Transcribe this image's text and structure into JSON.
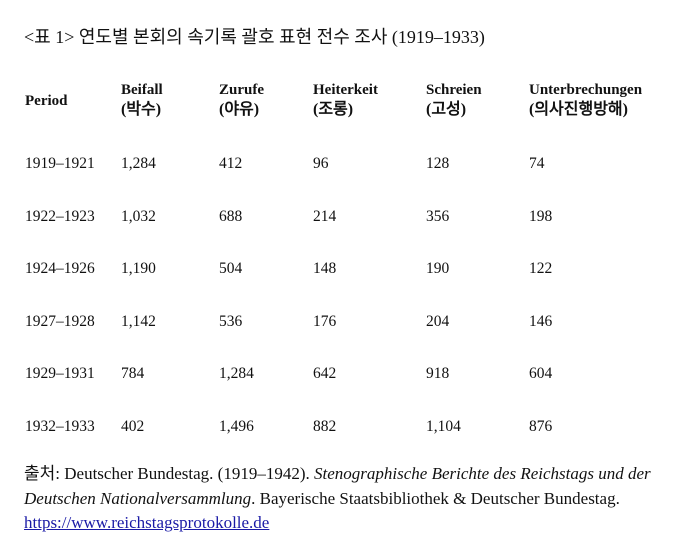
{
  "title": "<표 1> 연도별 본회의 속기록 괄호 표현 전수 조사 (1919–1933)",
  "table": {
    "columns": [
      {
        "label": "Period",
        "sub": ""
      },
      {
        "label": "Beifall",
        "sub": "(박수)"
      },
      {
        "label": "Zurufe",
        "sub": "(야유)"
      },
      {
        "label": "Heiterkeit",
        "sub": "(조롱)"
      },
      {
        "label": "Schreien",
        "sub": "(고성)"
      },
      {
        "label": "Unterbrechungen",
        "sub": "(의사진행방해)"
      }
    ],
    "rows": [
      [
        "1919–1921",
        "1,284",
        "412",
        "96",
        "128",
        "74"
      ],
      [
        "1922–1923",
        "1,032",
        "688",
        "214",
        "356",
        "198"
      ],
      [
        "1924–1926",
        "1,190",
        "504",
        "148",
        "190",
        "122"
      ],
      [
        "1927–1928",
        "1,142",
        "536",
        "176",
        "204",
        "146"
      ],
      [
        "1929–1931",
        "784",
        "1,284",
        "642",
        "918",
        "604"
      ],
      [
        "1932–1933",
        "402",
        "1,496",
        "882",
        "1,104",
        "876"
      ]
    ]
  },
  "source": {
    "prefix": "출처",
    "author": ": Deutscher Bundestag. (1919–1942). ",
    "work": "Stenographische Berichte des Reichstags und der Deutschen Nationalversammlung",
    "publisher": ". Bayerische Staatsbibliothek & Deutscher Bundestag. ",
    "url": "https://www.reichstagsprotokolle.de",
    "link_color": "#1a1aa6"
  }
}
